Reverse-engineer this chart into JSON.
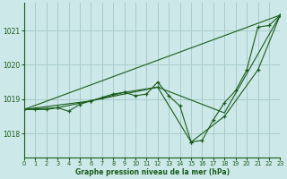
{
  "title": "Graphe pression niveau de la mer (hPa)",
  "background_color": "#cce8e8",
  "grid_color": "#aacccc",
  "line_color": "#1a5c1a",
  "xlim": [
    0,
    23
  ],
  "ylim": [
    1017.3,
    1021.8
  ],
  "xticks": [
    0,
    1,
    2,
    3,
    4,
    5,
    6,
    7,
    8,
    9,
    10,
    11,
    12,
    13,
    14,
    15,
    16,
    17,
    18,
    19,
    20,
    21,
    22,
    23
  ],
  "yticks": [
    1018,
    1019,
    1020,
    1021
  ],
  "series": [
    {
      "x": [
        0,
        1,
        2,
        3,
        4,
        5,
        6,
        7,
        8,
        9,
        10,
        11,
        12,
        13,
        14,
        15,
        16,
        17,
        18,
        19,
        20,
        21,
        22,
        23
      ],
      "y": [
        1018.7,
        1018.7,
        1018.7,
        1018.75,
        1018.65,
        1018.85,
        1018.95,
        1019.05,
        1019.15,
        1019.2,
        1019.1,
        1019.15,
        1019.5,
        1019.1,
        1018.8,
        1017.75,
        1017.8,
        1018.4,
        1018.9,
        1019.25,
        1019.85,
        1021.1,
        1021.15,
        1021.45
      ]
    },
    {
      "x": [
        0,
        3,
        6,
        9,
        12,
        15,
        18,
        21,
        23
      ],
      "y": [
        1018.7,
        1018.75,
        1018.95,
        1019.2,
        1019.35,
        1017.75,
        1018.5,
        1019.85,
        1021.45
      ]
    },
    {
      "x": [
        0,
        6,
        12,
        18,
        23
      ],
      "y": [
        1018.7,
        1018.95,
        1019.35,
        1018.6,
        1021.45
      ]
    },
    {
      "x": [
        0,
        23
      ],
      "y": [
        1018.7,
        1021.45
      ]
    }
  ]
}
